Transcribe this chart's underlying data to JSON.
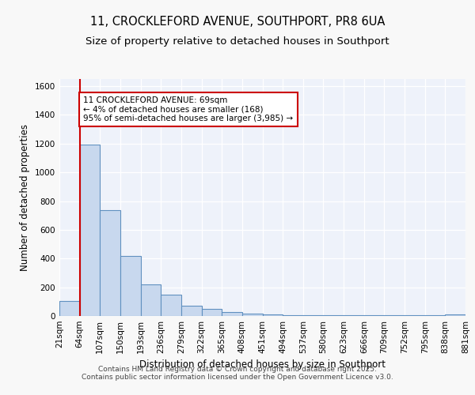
{
  "title_line1": "11, CROCKLEFORD AVENUE, SOUTHPORT, PR8 6UA",
  "title_line2": "Size of property relative to detached houses in Southport",
  "xlabel": "Distribution of detached houses by size in Southport",
  "ylabel": "Number of detached properties",
  "categories": [
    "21sqm",
    "64sqm",
    "107sqm",
    "150sqm",
    "193sqm",
    "236sqm",
    "279sqm",
    "322sqm",
    "365sqm",
    "408sqm",
    "451sqm",
    "494sqm",
    "537sqm",
    "580sqm",
    "623sqm",
    "666sqm",
    "709sqm",
    "752sqm",
    "795sqm",
    "838sqm",
    "881sqm"
  ],
  "hist_edges": [
    21,
    64,
    107,
    150,
    193,
    236,
    279,
    322,
    365,
    408,
    451,
    494,
    537,
    580,
    623,
    666,
    709,
    752,
    795,
    838,
    881
  ],
  "hist_counts": [
    105,
    1195,
    738,
    418,
    222,
    148,
    70,
    50,
    28,
    15,
    10,
    5,
    8,
    5,
    5,
    5,
    3,
    5,
    5,
    10
  ],
  "bar_color": "#c8d8ee",
  "bar_edge_color": "#6090c0",
  "vertical_line_x": 64,
  "vertical_line_color": "#cc0000",
  "annotation_text": "11 CROCKLEFORD AVENUE: 69sqm\n← 4% of detached houses are smaller (168)\n95% of semi-detached houses are larger (3,985) →",
  "annotation_box_color": "#ffffff",
  "annotation_border_color": "#cc0000",
  "ylim": [
    0,
    1650
  ],
  "yticks": [
    0,
    200,
    400,
    600,
    800,
    1000,
    1200,
    1400,
    1600
  ],
  "fig_bg_color": "#f8f8f8",
  "plot_bg_color": "#eef2fa",
  "grid_color": "#ffffff",
  "footer_text": "Contains HM Land Registry data © Crown copyright and database right 2025.\nContains public sector information licensed under the Open Government Licence v3.0.",
  "title_fontsize": 10.5,
  "subtitle_fontsize": 9.5,
  "axis_label_fontsize": 8.5,
  "tick_fontsize": 7.5,
  "annotation_fontsize": 7.5,
  "footer_fontsize": 6.5
}
